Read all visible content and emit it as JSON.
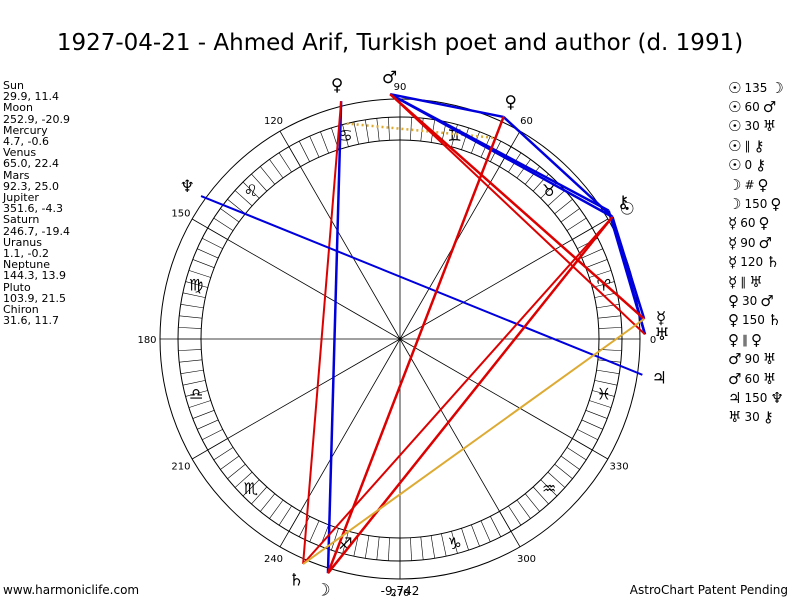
{
  "title": "1927-04-21 - Ahmed Arif, Turkish poet and author (d. 1991)",
  "positions": [
    {
      "name": "Sun",
      "value": "29.9, 11.4"
    },
    {
      "name": "Moon",
      "value": "252.9, -20.9"
    },
    {
      "name": "Mercury",
      "value": "4.7, -0.6"
    },
    {
      "name": "Venus",
      "value": "65.0, 22.4"
    },
    {
      "name": "Mars",
      "value": "92.3, 25.0"
    },
    {
      "name": "Jupiter",
      "value": "351.6, -4.3"
    },
    {
      "name": "Saturn",
      "value": "246.7, -19.4"
    },
    {
      "name": "Uranus",
      "value": "1.1, -0.2"
    },
    {
      "name": "Neptune",
      "value": "144.3, 13.9"
    },
    {
      "name": "Pluto",
      "value": "103.9, 21.5"
    },
    {
      "name": "Chiron",
      "value": "31.6, 11.7"
    }
  ],
  "aspects": [
    {
      "a": "☉",
      "n": "135",
      "b": "☽"
    },
    {
      "a": "☉",
      "n": "60",
      "b": "♂"
    },
    {
      "a": "☉",
      "n": "30",
      "b": "♅"
    },
    {
      "a": "☉",
      "n": "∥",
      "b": "⚷"
    },
    {
      "a": "☉",
      "n": "0",
      "b": "⚷"
    },
    {
      "a": "☽",
      "n": "#",
      "b": "♀"
    },
    {
      "a": "☽",
      "n": "150",
      "b": "♀"
    },
    {
      "a": "☿",
      "n": "60",
      "b": "♀"
    },
    {
      "a": "☿",
      "n": "90",
      "b": "♂"
    },
    {
      "a": "☿",
      "n": "120",
      "b": "♄"
    },
    {
      "a": "☿",
      "n": "∥",
      "b": "♅"
    },
    {
      "a": "♀",
      "n": "30",
      "b": "♂"
    },
    {
      "a": "♀",
      "n": "150",
      "b": "♄"
    },
    {
      "a": "♀",
      "n": "∥",
      "b": "♀"
    },
    {
      "a": "♂",
      "n": "90",
      "b": "♅"
    },
    {
      "a": "♂",
      "n": "60",
      "b": "♅"
    },
    {
      "a": "♃",
      "n": "150",
      "b": "♆"
    },
    {
      "a": "♅",
      "n": "30",
      "b": "⚷"
    }
  ],
  "degree_labels": [
    {
      "text": "90",
      "deg": 90
    },
    {
      "text": "60",
      "deg": 60
    },
    {
      "text": "120",
      "deg": 120
    },
    {
      "text": "150",
      "deg": 150
    },
    {
      "text": "180",
      "deg": 180
    },
    {
      "text": "0",
      "deg": 0
    },
    {
      "text": "210",
      "deg": 210
    },
    {
      "text": "240",
      "deg": 240
    },
    {
      "text": "270",
      "deg": 270
    },
    {
      "text": "300",
      "deg": 300
    },
    {
      "text": "330",
      "deg": 330
    }
  ],
  "signs": [
    {
      "glyph": "♉",
      "deg": 45
    },
    {
      "glyph": "♊",
      "deg": 75
    },
    {
      "glyph": "♋",
      "deg": 105
    },
    {
      "glyph": "♌",
      "deg": 135
    },
    {
      "glyph": "♍",
      "deg": 165
    },
    {
      "glyph": "♎",
      "deg": 195
    },
    {
      "glyph": "♏",
      "deg": 225
    },
    {
      "glyph": "♐",
      "deg": 255
    },
    {
      "glyph": "♑",
      "deg": 285
    },
    {
      "glyph": "♒",
      "deg": 315
    },
    {
      "glyph": "♓",
      "deg": 345
    },
    {
      "glyph": "♈",
      "deg": 15
    }
  ],
  "planets": [
    {
      "glyph": "♂",
      "deg": 92.3,
      "label": "mars"
    },
    {
      "glyph": "♀",
      "deg": 103.9,
      "label": "pluto"
    },
    {
      "glyph": "♀",
      "deg": 65.0,
      "label": "venus"
    },
    {
      "glyph": "♆",
      "deg": 144.3,
      "label": "neptune"
    },
    {
      "glyph": "☉",
      "deg": 29.9,
      "label": "sun"
    },
    {
      "glyph": "⚷",
      "deg": 31.6,
      "label": "chiron"
    },
    {
      "glyph": "☿",
      "deg": 4.7,
      "label": "mercury"
    },
    {
      "glyph": "♅",
      "deg": 1.1,
      "label": "uranus"
    },
    {
      "glyph": "♃",
      "deg": 351.6,
      "label": "jupiter"
    },
    {
      "glyph": "♄",
      "deg": 246.7,
      "label": "saturn"
    },
    {
      "glyph": "☽",
      "deg": 252.9,
      "label": "moon"
    }
  ],
  "aspect_lines": [
    {
      "from": 92.3,
      "to": 65.0,
      "color": "#0000dd",
      "w": 2.5
    },
    {
      "from": 92.3,
      "to": 29.9,
      "color": "#0000dd",
      "w": 2.5
    },
    {
      "from": 92.3,
      "to": 31.6,
      "color": "#0000dd",
      "w": 2.5
    },
    {
      "from": 65.0,
      "to": 29.9,
      "color": "#0000dd",
      "w": 2.5
    },
    {
      "from": 29.9,
      "to": 1.1,
      "color": "#0000dd",
      "w": 2.5
    },
    {
      "from": 31.6,
      "to": 1.1,
      "color": "#0000dd",
      "w": 2.5
    },
    {
      "from": 29.9,
      "to": 4.7,
      "color": "#0000dd",
      "w": 2.5
    },
    {
      "from": 103.9,
      "to": 252.9,
      "color": "#0000dd",
      "w": 2.5
    },
    {
      "from": 103.9,
      "to": 246.7,
      "color": "#dd0000",
      "w": 2.0
    },
    {
      "from": 144.3,
      "to": 351.6,
      "color": "#0000dd",
      "w": 2.0
    },
    {
      "from": 92.3,
      "to": 4.7,
      "color": "#dd0000",
      "w": 2.5
    },
    {
      "from": 92.3,
      "to": 1.1,
      "color": "#dd0000",
      "w": 2.0
    },
    {
      "from": 65.0,
      "to": 252.9,
      "color": "#dd0000",
      "w": 2.5
    },
    {
      "from": 29.9,
      "to": 252.9,
      "color": "#dd0000",
      "w": 2.5
    },
    {
      "from": 29.9,
      "to": 246.7,
      "color": "#dd0000",
      "w": 2.0
    },
    {
      "from": 4.7,
      "to": 246.7,
      "color": "#ddaa33",
      "w": 2.0
    }
  ],
  "dotted_line": {
    "from": 103.9,
    "to": 65.0,
    "color": "#ddaa33"
  },
  "center_value": "-9,742",
  "footer_left": "www.harmoniclife.com",
  "footer_right": "AstroChart Patent Pending"
}
